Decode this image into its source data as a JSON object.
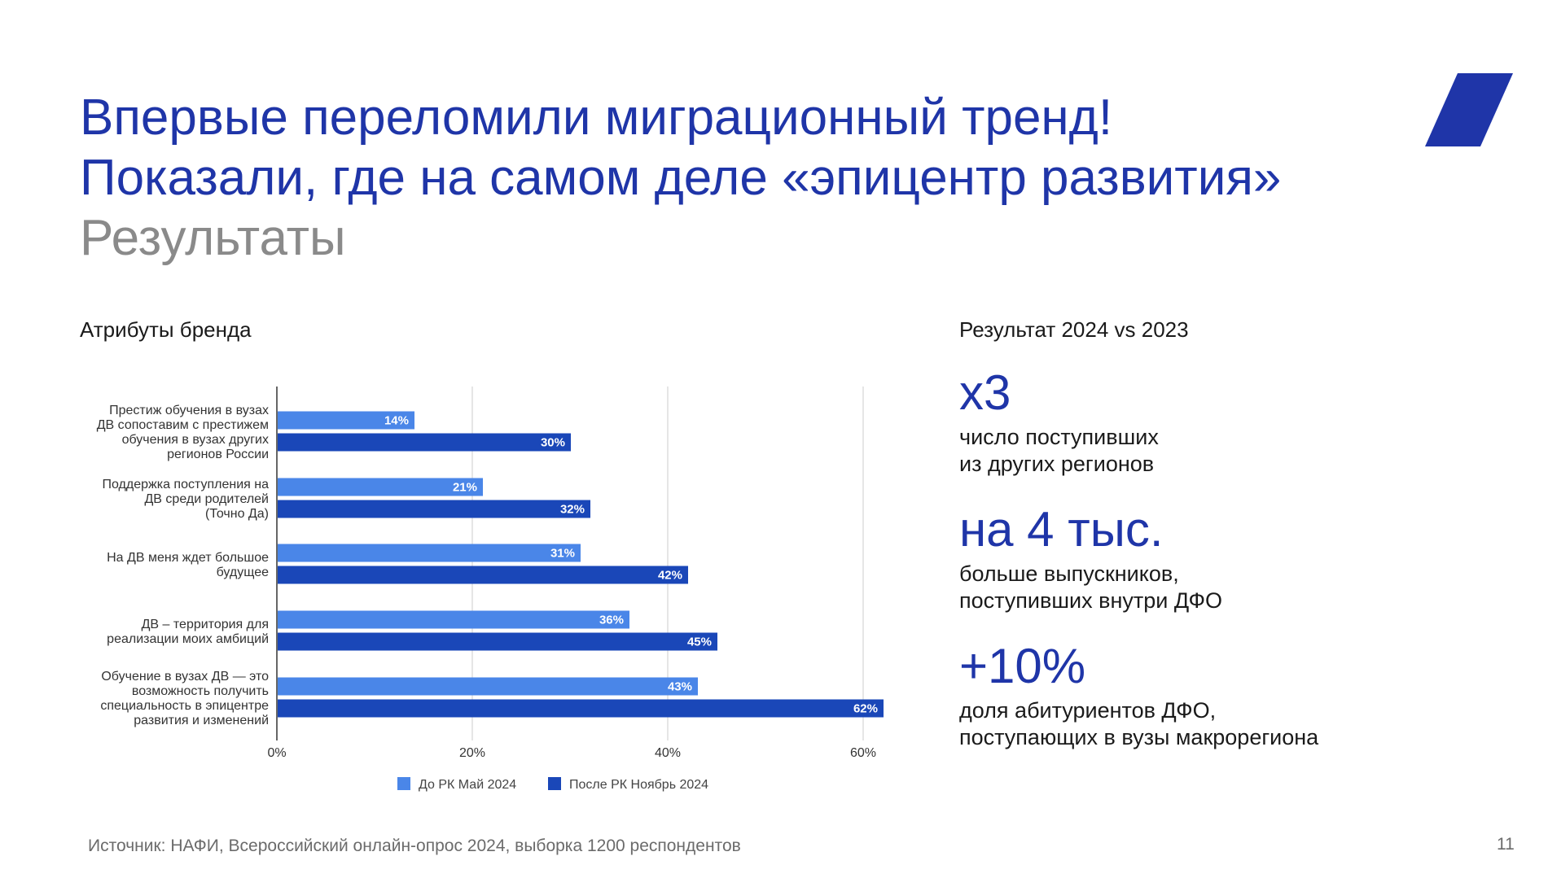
{
  "title": {
    "line1": "Впервые переломили миграционный тренд!",
    "line2": "Показали, где на самом деле «эпицентр развития»",
    "subtitle": "Результаты"
  },
  "left_heading": "Атрибуты бренда",
  "right_heading": "Результат 2024 vs 2023",
  "chart_data": {
    "type": "bar",
    "orientation": "horizontal",
    "categories": [
      [
        "Престиж обучения в вузах",
        "ДВ сопоставим с престижем",
        "обучения в вузах других",
        "регионов России"
      ],
      [
        "Поддержка поступления на",
        "ДВ среди родителей",
        "(Точно Да)"
      ],
      [
        "На ДВ меня ждет большое",
        "будущее"
      ],
      [
        "ДВ – территория для",
        "реализации моих амбиций"
      ],
      [
        "Обучение в вузах ДВ — это",
        "возможность получить",
        "специальность в эпицентре",
        "развития и изменений"
      ]
    ],
    "series": [
      {
        "name": "До РК Май 2024",
        "color": "#4a86e8",
        "values": [
          14,
          21,
          31,
          36,
          43
        ],
        "labels": [
          "14%",
          "21%",
          "31%",
          "36%",
          "43%"
        ]
      },
      {
        "name": "После РК Ноябрь 2024",
        "color": "#1a47b8",
        "values": [
          30,
          32,
          42,
          45,
          62
        ],
        "labels": [
          "30%",
          "32%",
          "42%",
          "45%",
          "62%"
        ]
      }
    ],
    "xlim": [
      0,
      60
    ],
    "xticks": [
      "0%",
      "20%",
      "40%",
      "60%"
    ],
    "grid": true,
    "legend_position": "bottom"
  },
  "stats": [
    {
      "big": "х3",
      "desc1": "число поступивших",
      "desc2": "из других регионов"
    },
    {
      "big": "на 4 тыс.",
      "desc1": "больше выпускников,",
      "desc2": "поступивших внутри ДФО"
    },
    {
      "big": "+10%",
      "desc1": "доля абитуриентов ДФО,",
      "desc2": "поступающих в вузы макрорегиона"
    }
  ],
  "source": "Источник: НАФИ, Всероссийский онлайн-опрос 2024, выборка 1200 респондентов",
  "page_number": "11",
  "colors": {
    "accent": "#1f35a8",
    "bar_light": "#4a86e8",
    "bar_dark": "#1a47b8"
  }
}
